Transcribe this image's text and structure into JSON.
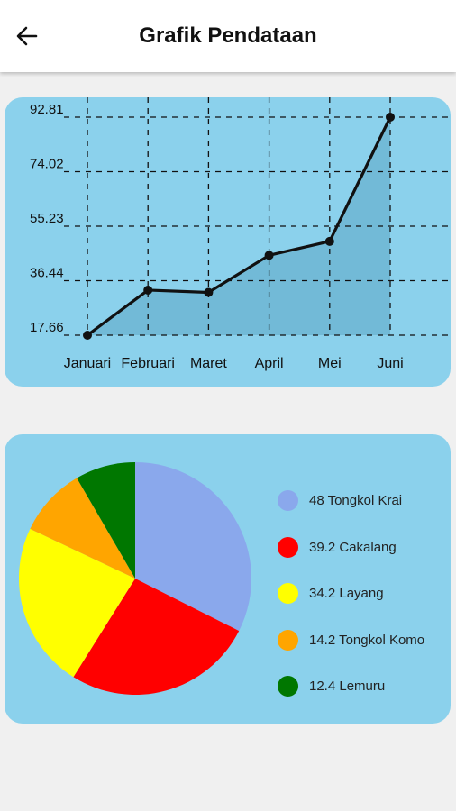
{
  "header": {
    "title": "Grafik Pendataan",
    "back_icon": "arrow-left-icon"
  },
  "chart_data": [
    {
      "type": "line",
      "categories": [
        "Januari",
        "Februari",
        "Maret",
        "April",
        "Mei",
        "Juni"
      ],
      "series": [
        {
          "values": [
            17.66,
            33.2,
            32.4,
            45.2,
            50.0,
            92.81
          ]
        }
      ],
      "y_ticks": [
        "17.66",
        "36.44",
        "55.23",
        "74.02",
        "92.81"
      ],
      "ylim": [
        17.66,
        92.81
      ],
      "grid": true,
      "line_color": "#111111",
      "fill_color": "#5fa8c7"
    },
    {
      "type": "pie",
      "slices": [
        {
          "label": "48 Tongkol Krai",
          "value": 48,
          "color": "#8aa8ec"
        },
        {
          "label": "39.2 Cakalang",
          "value": 39.2,
          "color": "#ff0000"
        },
        {
          "label": "34.2 Layang",
          "value": 34.2,
          "color": "#ffff00"
        },
        {
          "label": "14.2 Tongkol Komo",
          "value": 14.2,
          "color": "#ffa500"
        },
        {
          "label": "12.4 Lemuru",
          "value": 12.4,
          "color": "#007700"
        }
      ],
      "legend_position": "right"
    }
  ],
  "colors": {
    "card": "#8bd1ec",
    "appbar": "#ffffff",
    "background": "#f0f0f0"
  }
}
